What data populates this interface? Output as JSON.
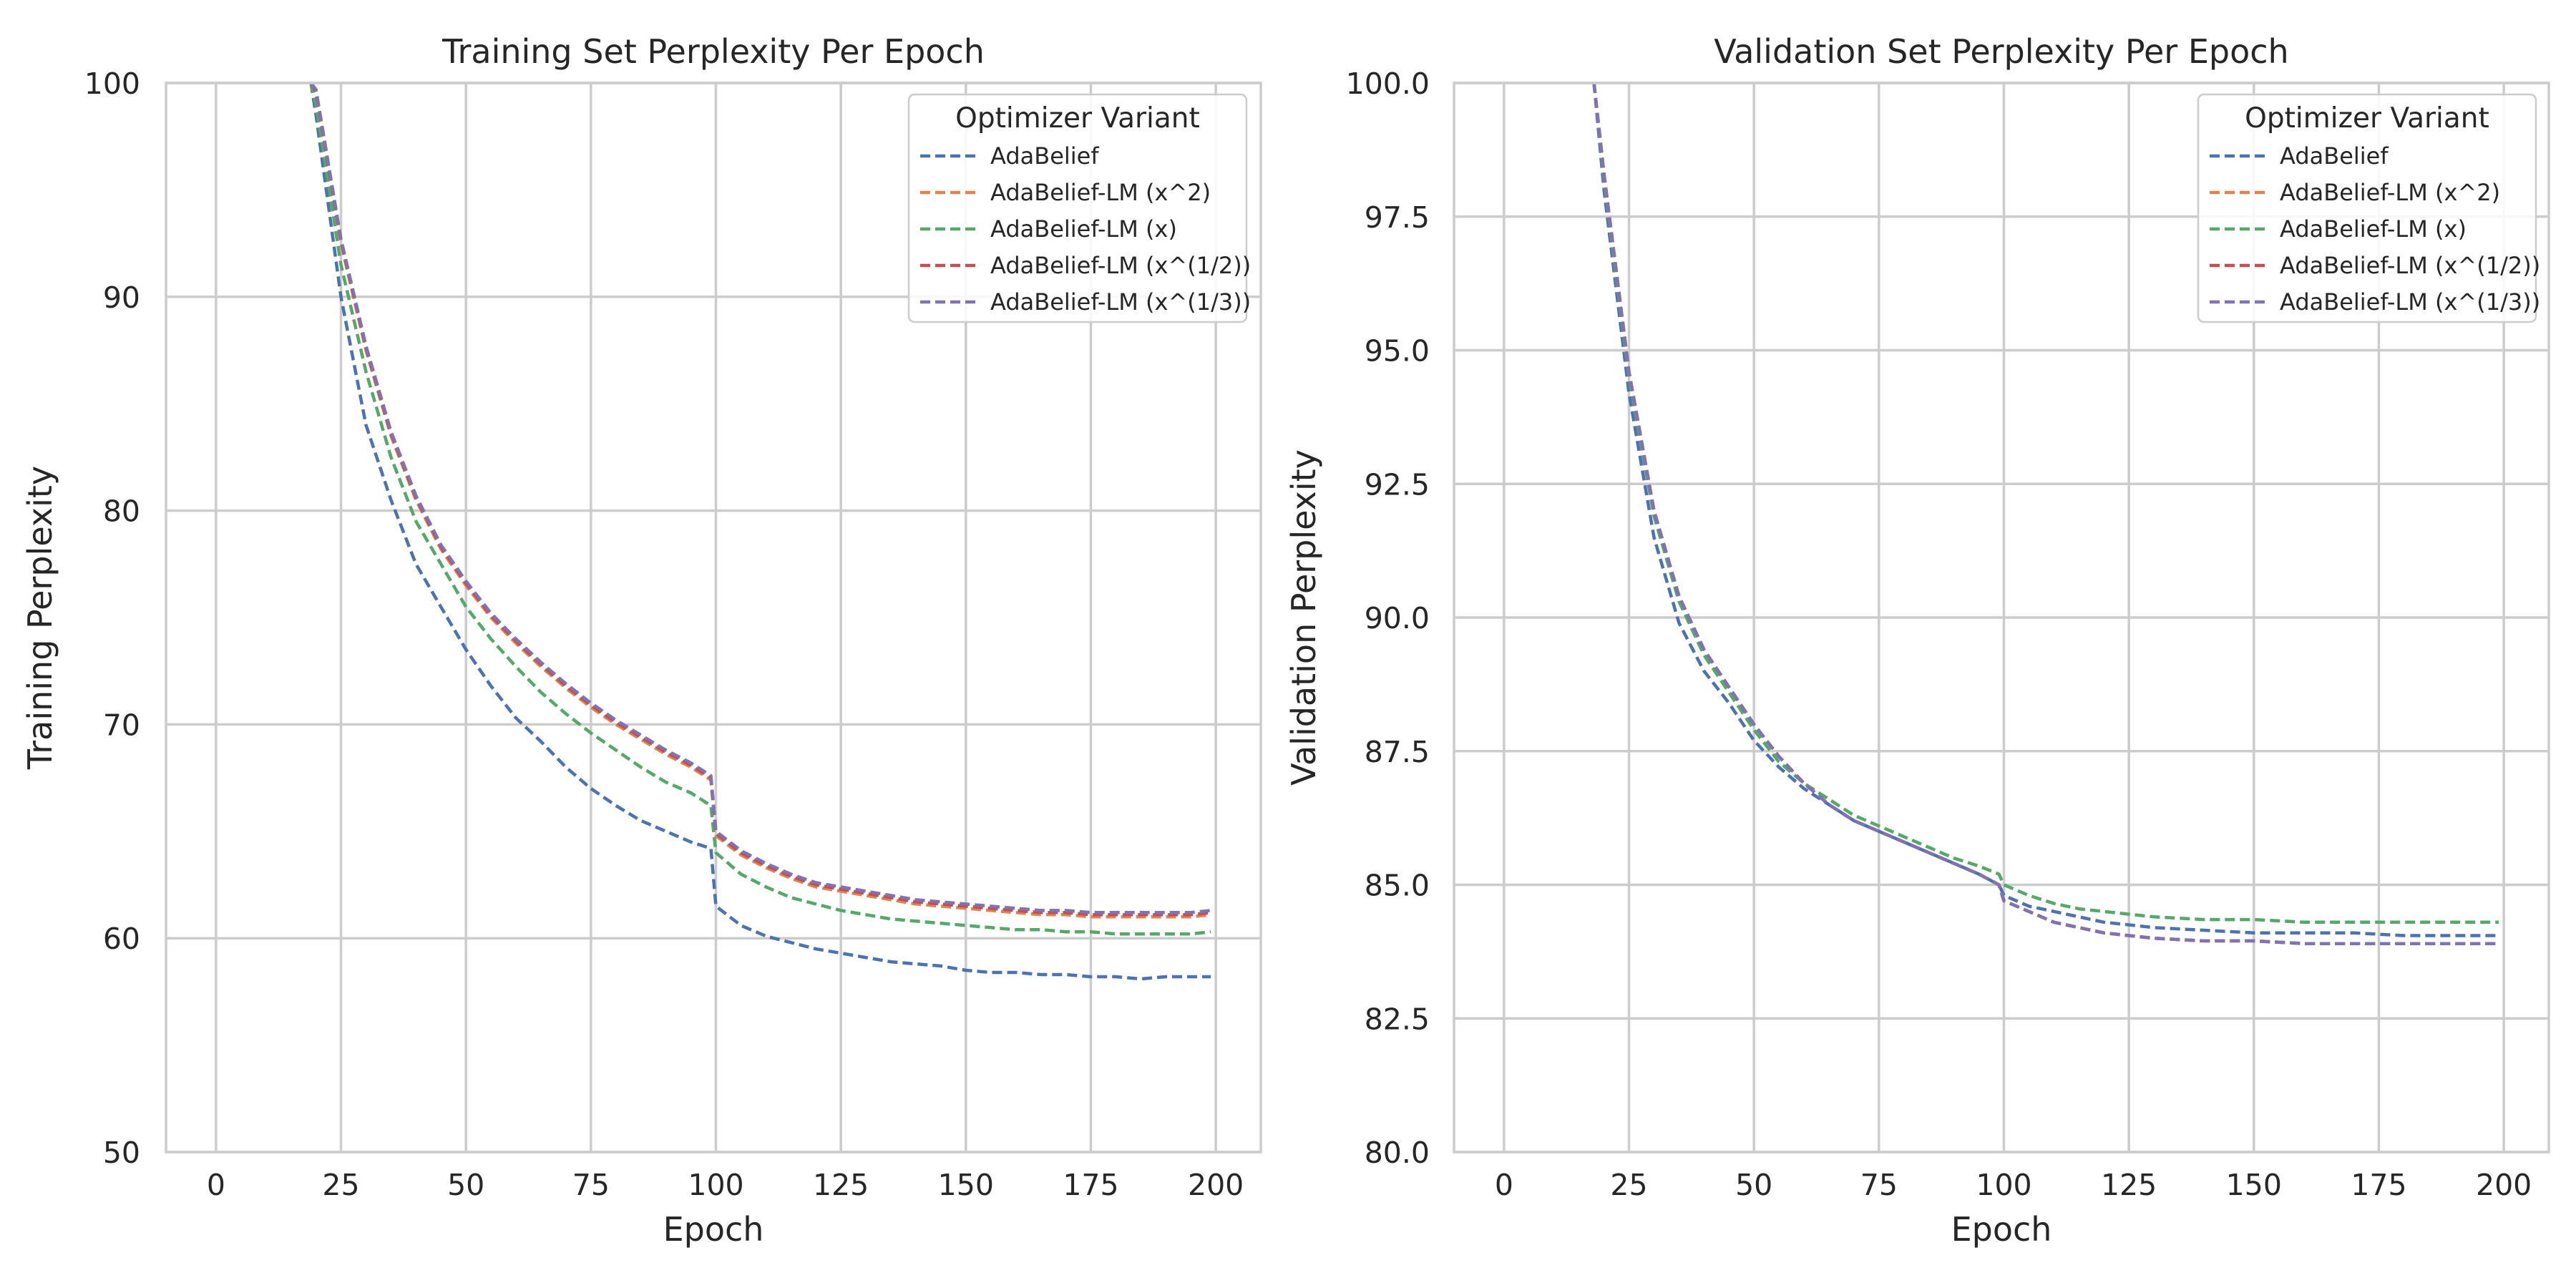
{
  "chart_data": [
    {
      "type": "line",
      "title": "Training Set Perplexity Per Epoch",
      "xlabel": "Epoch",
      "ylabel": "Training Perplexity",
      "xlim": [
        -10,
        209
      ],
      "ylim": [
        50,
        100
      ],
      "xticks": [
        0,
        25,
        50,
        75,
        100,
        125,
        150,
        175,
        200
      ],
      "yticks": [
        50,
        60,
        70,
        80,
        90,
        100
      ],
      "ytick_labels": [
        "50",
        "60",
        "70",
        "80",
        "90",
        "100"
      ],
      "grid": true,
      "legend": {
        "title": "Optimizer Variant",
        "placement": "top-right"
      },
      "series": [
        {
          "name": "AdaBelief",
          "color": "#4c72b0",
          "x": [
            19,
            20,
            25,
            30,
            35,
            40,
            45,
            50,
            55,
            60,
            65,
            70,
            75,
            80,
            85,
            90,
            95,
            99,
            100,
            105,
            110,
            115,
            120,
            125,
            130,
            135,
            140,
            145,
            150,
            155,
            160,
            165,
            170,
            175,
            180,
            185,
            190,
            195,
            199
          ],
          "y": [
            100,
            98.5,
            90,
            84,
            80.5,
            77.5,
            75.5,
            73.5,
            71.8,
            70.3,
            69.2,
            68.0,
            67.0,
            66.2,
            65.5,
            65.0,
            64.5,
            64.2,
            61.5,
            60.6,
            60.1,
            59.8,
            59.5,
            59.3,
            59.1,
            58.9,
            58.8,
            58.7,
            58.5,
            58.4,
            58.4,
            58.3,
            58.3,
            58.2,
            58.2,
            58.1,
            58.2,
            58.2,
            58.2
          ]
        },
        {
          "name": "AdaBelief-LM (x^2)",
          "color": "#dd8452",
          "x": [
            19,
            20,
            25,
            30,
            35,
            40,
            45,
            50,
            55,
            60,
            65,
            70,
            75,
            80,
            85,
            90,
            95,
            99,
            100,
            105,
            110,
            115,
            120,
            125,
            130,
            135,
            140,
            145,
            150,
            155,
            160,
            165,
            170,
            175,
            180,
            185,
            190,
            195,
            199
          ],
          "y": [
            100,
            99.5,
            92.5,
            87.5,
            83.5,
            80.5,
            78.2,
            76.5,
            75.0,
            73.8,
            72.7,
            71.7,
            70.8,
            70.0,
            69.3,
            68.6,
            68.0,
            67.4,
            64.8,
            63.9,
            63.3,
            62.8,
            62.4,
            62.2,
            62.0,
            61.8,
            61.6,
            61.5,
            61.4,
            61.3,
            61.2,
            61.1,
            61.1,
            61.0,
            61.0,
            61.0,
            61.0,
            61.0,
            61.1
          ]
        },
        {
          "name": "AdaBelief-LM (x)",
          "color": "#55a868",
          "x": [
            19,
            20,
            25,
            30,
            35,
            40,
            45,
            50,
            55,
            60,
            65,
            70,
            75,
            80,
            85,
            90,
            95,
            99,
            100,
            105,
            110,
            115,
            120,
            125,
            130,
            135,
            140,
            145,
            150,
            155,
            160,
            165,
            170,
            175,
            180,
            185,
            190,
            195,
            199
          ],
          "y": [
            100,
            99.0,
            91.5,
            86.5,
            82.5,
            79.5,
            77.5,
            75.5,
            74.0,
            72.7,
            71.5,
            70.5,
            69.6,
            68.8,
            68.0,
            67.3,
            66.8,
            66.2,
            64.0,
            63.0,
            62.4,
            61.9,
            61.6,
            61.3,
            61.1,
            60.9,
            60.8,
            60.7,
            60.6,
            60.5,
            60.4,
            60.4,
            60.3,
            60.3,
            60.2,
            60.2,
            60.2,
            60.2,
            60.3
          ]
        },
        {
          "name": "AdaBelief-LM (x^(1/2))",
          "color": "#c44e52",
          "x": [
            19,
            20,
            25,
            30,
            35,
            40,
            45,
            50,
            55,
            60,
            65,
            70,
            75,
            80,
            85,
            90,
            95,
            99,
            100,
            105,
            110,
            115,
            120,
            125,
            130,
            135,
            140,
            145,
            150,
            155,
            160,
            165,
            170,
            175,
            180,
            185,
            190,
            195,
            199
          ],
          "y": [
            100,
            99.6,
            92.6,
            87.6,
            83.6,
            80.6,
            78.3,
            76.6,
            75.1,
            73.9,
            72.8,
            71.8,
            70.9,
            70.1,
            69.4,
            68.7,
            68.1,
            67.5,
            64.9,
            64.0,
            63.4,
            62.9,
            62.5,
            62.3,
            62.1,
            61.9,
            61.7,
            61.6,
            61.5,
            61.4,
            61.3,
            61.2,
            61.2,
            61.1,
            61.1,
            61.1,
            61.1,
            61.1,
            61.2
          ]
        },
        {
          "name": "AdaBelief-LM (x^(1/3))",
          "color": "#8172b3",
          "x": [
            19,
            20,
            25,
            30,
            35,
            40,
            45,
            50,
            55,
            60,
            65,
            70,
            75,
            80,
            85,
            90,
            95,
            99,
            100,
            105,
            110,
            115,
            120,
            125,
            130,
            135,
            140,
            145,
            150,
            155,
            160,
            165,
            170,
            175,
            180,
            185,
            190,
            195,
            199
          ],
          "y": [
            100,
            99.7,
            92.7,
            87.7,
            83.7,
            80.7,
            78.4,
            76.7,
            75.2,
            74.0,
            72.9,
            71.9,
            71.0,
            70.2,
            69.5,
            68.8,
            68.2,
            67.6,
            65.0,
            64.1,
            63.5,
            63.0,
            62.6,
            62.4,
            62.2,
            62.0,
            61.8,
            61.7,
            61.6,
            61.5,
            61.4,
            61.3,
            61.3,
            61.2,
            61.2,
            61.2,
            61.2,
            61.2,
            61.3
          ]
        }
      ]
    },
    {
      "type": "line",
      "title": "Validation Set Perplexity Per Epoch",
      "xlabel": "Epoch",
      "ylabel": "Validation Perplexity",
      "xlim": [
        -10,
        209
      ],
      "ylim": [
        80,
        100
      ],
      "xticks": [
        0,
        25,
        50,
        75,
        100,
        125,
        150,
        175,
        200
      ],
      "yticks": [
        80,
        82.5,
        85,
        87.5,
        90,
        92.5,
        95,
        97.5,
        100
      ],
      "ytick_labels": [
        "80.0",
        "82.5",
        "85.0",
        "87.5",
        "90.0",
        "92.5",
        "95.0",
        "97.5",
        "100.0"
      ],
      "grid": true,
      "legend": {
        "title": "Optimizer Variant",
        "placement": "top-right"
      },
      "series": [
        {
          "name": "AdaBelief",
          "color": "#4c72b0",
          "x": [
            18,
            20,
            25,
            30,
            35,
            40,
            45,
            50,
            55,
            60,
            65,
            70,
            75,
            80,
            85,
            90,
            95,
            99,
            100,
            105,
            110,
            115,
            120,
            125,
            130,
            140,
            150,
            160,
            170,
            180,
            190,
            199
          ],
          "y": [
            100,
            98.0,
            94.2,
            91.5,
            89.9,
            89.0,
            88.4,
            87.7,
            87.2,
            86.8,
            86.5,
            86.2,
            86.0,
            85.8,
            85.6,
            85.4,
            85.2,
            85.0,
            84.8,
            84.6,
            84.5,
            84.4,
            84.3,
            84.25,
            84.2,
            84.15,
            84.1,
            84.1,
            84.1,
            84.05,
            84.05,
            84.05
          ]
        },
        {
          "name": "AdaBelief-LM (x^2)",
          "color": "#dd8452",
          "x": [
            18,
            20,
            25,
            30,
            35,
            40,
            45,
            50,
            55,
            60,
            65,
            70,
            75,
            80,
            85,
            90,
            95,
            99,
            100,
            105,
            110,
            115,
            120,
            125,
            130,
            140,
            150,
            160,
            170,
            180,
            190,
            199
          ],
          "y": [
            100,
            98.3,
            94.6,
            92.0,
            90.4,
            89.4,
            88.7,
            88.0,
            87.4,
            86.9,
            86.5,
            86.2,
            86.0,
            85.8,
            85.6,
            85.4,
            85.2,
            85.0,
            84.7,
            84.5,
            84.3,
            84.2,
            84.1,
            84.05,
            84.0,
            83.95,
            83.95,
            83.9,
            83.9,
            83.9,
            83.9,
            83.9
          ]
        },
        {
          "name": "AdaBelief-LM (x)",
          "color": "#55a868",
          "x": [
            18,
            20,
            25,
            30,
            35,
            40,
            45,
            50,
            55,
            60,
            65,
            70,
            75,
            80,
            85,
            90,
            95,
            99,
            100,
            105,
            110,
            115,
            120,
            125,
            130,
            140,
            150,
            160,
            170,
            180,
            190,
            199
          ],
          "y": [
            100,
            98.2,
            94.5,
            91.9,
            90.3,
            89.3,
            88.6,
            87.9,
            87.3,
            86.9,
            86.6,
            86.3,
            86.1,
            85.9,
            85.7,
            85.5,
            85.35,
            85.2,
            85.0,
            84.8,
            84.65,
            84.55,
            84.5,
            84.45,
            84.4,
            84.35,
            84.35,
            84.3,
            84.3,
            84.3,
            84.3,
            84.3
          ]
        },
        {
          "name": "AdaBelief-LM (x^(1/2))",
          "color": "#c44e52",
          "x": [
            18,
            20,
            25,
            30,
            35,
            40,
            45,
            50,
            55,
            60,
            65,
            70,
            75,
            80,
            85,
            90,
            95,
            99,
            100,
            105,
            110,
            115,
            120,
            125,
            130,
            140,
            150,
            160,
            170,
            180,
            190,
            199
          ],
          "y": [
            100,
            98.3,
            94.6,
            92.0,
            90.4,
            89.4,
            88.7,
            88.0,
            87.4,
            86.9,
            86.5,
            86.2,
            86.0,
            85.8,
            85.6,
            85.4,
            85.2,
            85.0,
            84.7,
            84.5,
            84.3,
            84.2,
            84.1,
            84.05,
            84.0,
            83.95,
            83.95,
            83.9,
            83.9,
            83.9,
            83.9,
            83.9
          ]
        },
        {
          "name": "AdaBelief-LM (x^(1/3))",
          "color": "#8172b3",
          "x": [
            18,
            20,
            25,
            30,
            35,
            40,
            45,
            50,
            55,
            60,
            65,
            70,
            75,
            80,
            85,
            90,
            95,
            99,
            100,
            105,
            110,
            115,
            120,
            125,
            130,
            140,
            150,
            160,
            170,
            180,
            190,
            199
          ],
          "y": [
            100,
            98.3,
            94.6,
            92.0,
            90.4,
            89.4,
            88.7,
            88.0,
            87.4,
            86.9,
            86.5,
            86.2,
            86.0,
            85.8,
            85.6,
            85.4,
            85.2,
            85.0,
            84.7,
            84.5,
            84.3,
            84.2,
            84.1,
            84.05,
            84.0,
            83.95,
            83.95,
            83.9,
            83.9,
            83.9,
            83.9,
            83.9
          ]
        }
      ]
    }
  ]
}
